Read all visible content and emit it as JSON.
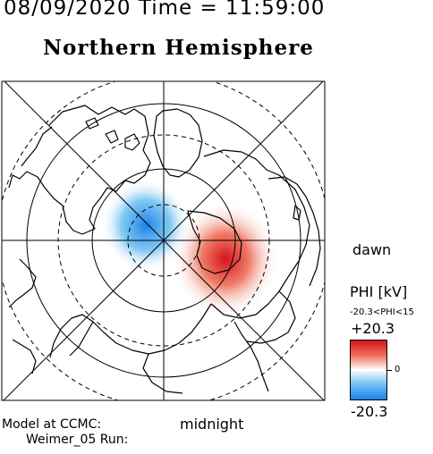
{
  "header": {
    "datetime": "08/09/2020 Time = 11:59:00",
    "title": "Northern Hemisphere"
  },
  "map": {
    "projection": "polar stereographic, north pole centered",
    "labels": {
      "right": "dawn",
      "bottom": "midnight"
    },
    "grid": {
      "latitude_circles": "solid and dashed alternating",
      "meridians": 8
    },
    "potential_cells": [
      {
        "polarity": "negative",
        "color": "#1e82e8"
      },
      {
        "polarity": "positive",
        "color": "#d4141c"
      }
    ]
  },
  "footer": {
    "model": "Model at CCMC:",
    "run": "Weimer_05 Run:"
  },
  "colorbar": {
    "title": "PHI [kV]",
    "range_label": "-20.3<PHI<15",
    "max_label": "+20.3",
    "zero_label": "0",
    "min_label": "-20.3",
    "colors": {
      "max": "#d4141c",
      "mid": "#ffffff",
      "min": "#1e82e8"
    }
  }
}
